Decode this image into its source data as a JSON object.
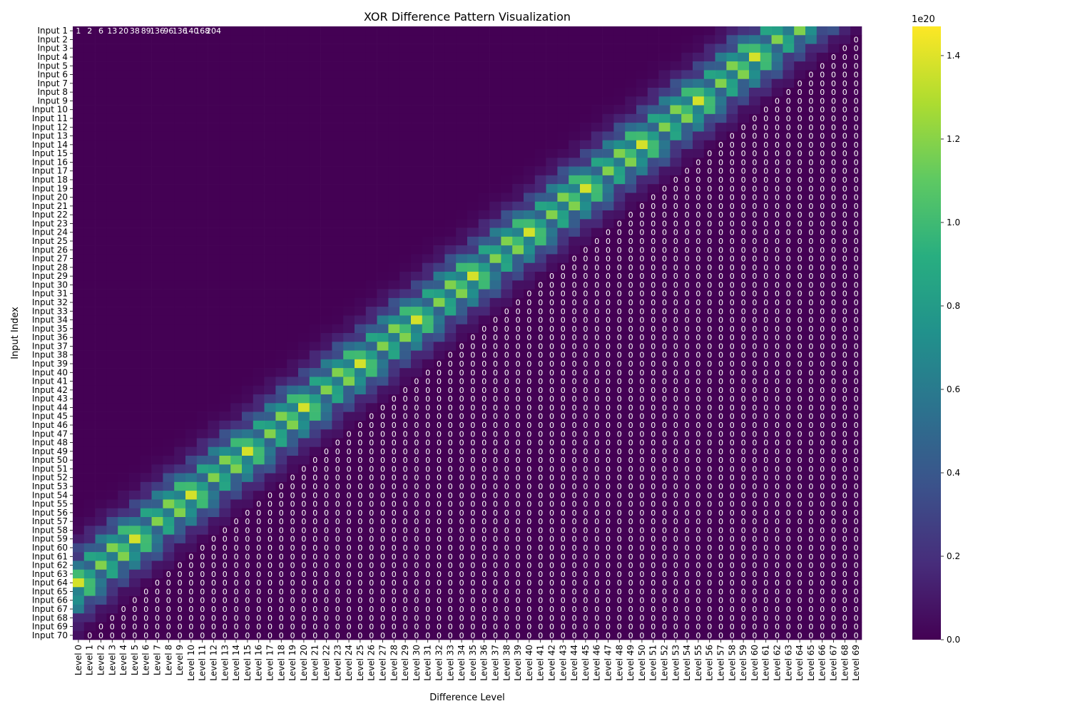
{
  "chart_data": {
    "type": "heatmap",
    "title": "XOR Difference Pattern Visualization",
    "xlabel": "Difference Level",
    "ylabel": "Input Index",
    "row_prefix": "Input ",
    "col_prefix": "Level ",
    "rows": [
      "Input 1",
      "Input 2",
      "Input 3",
      "Input 4",
      "Input 5",
      "Input 6",
      "Input 7",
      "Input 8",
      "Input 9",
      "Input 10",
      "Input 11",
      "Input 12",
      "Input 13",
      "Input 14",
      "Input 15",
      "Input 16",
      "Input 17",
      "Input 18",
      "Input 19",
      "Input 20",
      "Input 21",
      "Input 22",
      "Input 23",
      "Input 24",
      "Input 25",
      "Input 26",
      "Input 27",
      "Input 28",
      "Input 29",
      "Input 30",
      "Input 31",
      "Input 32",
      "Input 33",
      "Input 34",
      "Input 35",
      "Input 36",
      "Input 37",
      "Input 38",
      "Input 39",
      "Input 40",
      "Input 41",
      "Input 42",
      "Input 43",
      "Input 44",
      "Input 45",
      "Input 46",
      "Input 47",
      "Input 48",
      "Input 49",
      "Input 50",
      "Input 51",
      "Input 52",
      "Input 53",
      "Input 54",
      "Input 55",
      "Input 56",
      "Input 57",
      "Input 58",
      "Input 59",
      "Input 60",
      "Input 61",
      "Input 62",
      "Input 63",
      "Input 64",
      "Input 65",
      "Input 66",
      "Input 67",
      "Input 68",
      "Input 69",
      "Input 70"
    ],
    "columns": [
      "Level 0",
      "Level 1",
      "Level 2",
      "Level 3",
      "Level 4",
      "Level 5",
      "Level 6",
      "Level 7",
      "Level 8",
      "Level 9",
      "Level 10",
      "Level 11",
      "Level 12",
      "Level 13",
      "Level 14",
      "Level 15",
      "Level 16",
      "Level 17",
      "Level 18",
      "Level 19",
      "Level 20",
      "Level 21",
      "Level 22",
      "Level 23",
      "Level 24",
      "Level 25",
      "Level 26",
      "Level 27",
      "Level 28",
      "Level 29",
      "Level 30",
      "Level 31",
      "Level 32",
      "Level 33",
      "Level 34",
      "Level 35",
      "Level 36",
      "Level 37",
      "Level 38",
      "Level 39",
      "Level 40",
      "Level 41",
      "Level 42",
      "Level 43",
      "Level 44",
      "Level 45",
      "Level 46",
      "Level 47",
      "Level 48",
      "Level 49",
      "Level 50",
      "Level 51",
      "Level 52",
      "Level 53",
      "Level 54",
      "Level 55",
      "Level 56",
      "Level 57",
      "Level 58",
      "Level 59",
      "Level 60",
      "Level 61",
      "Level 62",
      "Level 63",
      "Level 64",
      "Level 65",
      "Level 66",
      "Level 67",
      "Level 68",
      "Level 69"
    ],
    "row0_visible_values": [
      "1",
      "2",
      "6",
      "13",
      "20",
      "38",
      "89",
      "136",
      "96",
      "136",
      "140",
      "168",
      "204"
    ],
    "nonzero_region": "upper-left triangle (row index + level < 70); cells beyond are 0",
    "highlight_band": "values peak near the anti-diagonal edge of the triangle",
    "value_range": [
      0,
      1.47e+20
    ],
    "colorbar": {
      "ticks": [
        "0.0",
        "0.2",
        "0.4",
        "0.6",
        "0.8",
        "1.0",
        "1.2",
        "1.4"
      ],
      "tick_values": [
        0,
        0.2,
        0.4,
        0.6,
        0.8,
        1.0,
        1.2,
        1.4
      ],
      "exponent_label": "1e20",
      "max": 1.47,
      "colormap": "viridis"
    },
    "annotations": "each cell prints its integer value; zero cells print 0",
    "grid": false,
    "legend": "colorbar right"
  }
}
